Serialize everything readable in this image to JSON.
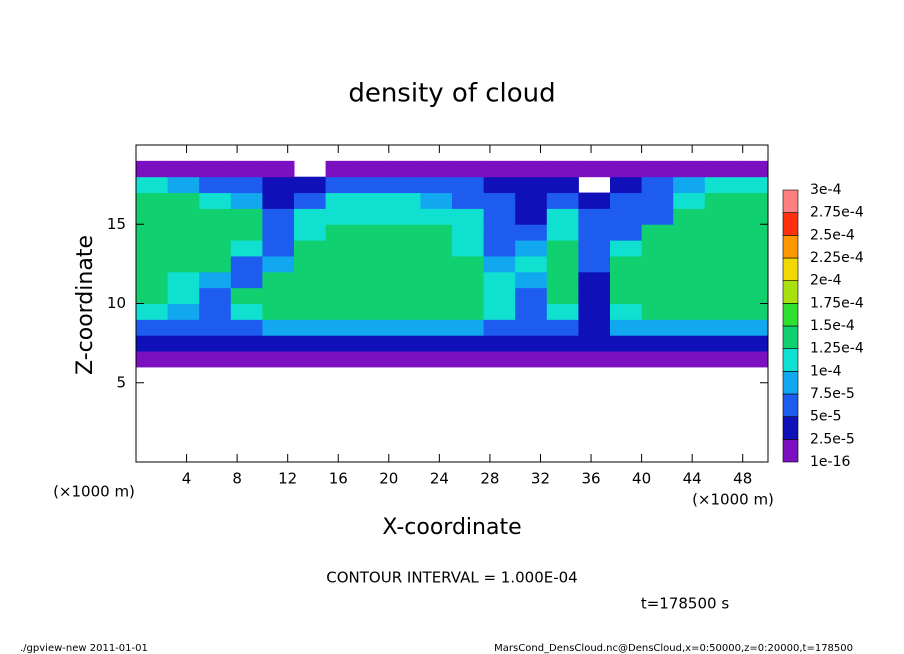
{
  "chart_data": {
    "type": "contour",
    "title": "density of cloud",
    "x_label": "X-coordinate",
    "y_label": "Z-coordinate",
    "x_unit_left": "(×1000 m)",
    "x_unit_right": "(×1000 m)",
    "contour_note": "CONTOUR INTERVAL = 1.000E-04",
    "time_note": "t=178500 s",
    "footer_left": "./gpview-new   2011-01-01",
    "footer_right": "MarsCond_DensCloud.nc@DensCloud,x=0:50000,z=0:20000,t=178500",
    "xlim": [
      0,
      50
    ],
    "ylim": [
      0,
      20
    ],
    "xticks": [
      4,
      8,
      12,
      16,
      20,
      24,
      28,
      32,
      36,
      40,
      44,
      48
    ],
    "yticks": [
      5,
      10,
      15
    ],
    "x_bins": [
      0,
      2.5,
      5,
      7.5,
      10,
      12.5,
      15,
      17.5,
      20,
      22.5,
      25,
      27.5,
      30,
      32.5,
      35,
      37.5,
      40,
      42.5,
      45,
      47.5,
      50
    ],
    "z_bins": [
      6,
      7,
      8,
      9,
      10,
      11,
      12,
      13,
      14,
      15,
      16,
      17,
      18,
      19
    ],
    "field": [
      [
        2e-05,
        1e-05,
        1e-05,
        2e-05,
        2e-05,
        2e-05,
        2e-05,
        2e-05,
        2e-05,
        2e-05,
        2e-05,
        2e-05,
        1e-05,
        1e-05,
        1e-05,
        2e-05,
        2e-05,
        2e-05,
        2e-05,
        2e-05
      ],
      [
        4e-05,
        3e-05,
        3e-05,
        4e-05,
        4e-05,
        4e-05,
        4e-05,
        4e-05,
        4e-05,
        4e-05,
        4e-05,
        4e-05,
        3e-05,
        3e-05,
        3e-05,
        4e-05,
        4e-05,
        4e-05,
        4e-05,
        4e-05
      ],
      [
        7e-05,
        6e-05,
        5e-05,
        7e-05,
        8e-05,
        8e-05,
        8e-05,
        8e-05,
        8e-05,
        8e-05,
        8e-05,
        7e-05,
        5e-05,
        6e-05,
        4e-05,
        8e-05,
        8e-05,
        8e-05,
        8e-05,
        8e-05
      ],
      [
        0.00011,
        8e-05,
        6e-05,
        0.00012,
        0.00013,
        0.00013,
        0.00013,
        0.00013,
        0.00013,
        0.00013,
        0.00013,
        0.00012,
        6e-05,
        0.00012,
        3e-05,
        0.00012,
        0.00013,
        0.00013,
        0.00013,
        0.00013
      ],
      [
        0.00013,
        0.00011,
        7e-05,
        0.00013,
        0.00014,
        0.00014,
        0.00014,
        0.00014,
        0.00014,
        0.00014,
        0.00014,
        0.00011,
        7e-05,
        0.00014,
        3e-05,
        0.00014,
        0.00014,
        0.00014,
        0.00014,
        0.00014
      ],
      [
        0.00013,
        0.00012,
        9e-05,
        6e-05,
        0.00013,
        0.00014,
        0.00014,
        0.00014,
        0.00014,
        0.00014,
        0.00014,
        0.0001,
        8e-05,
        0.00014,
        4e-05,
        0.00013,
        0.00014,
        0.00014,
        0.00014,
        0.00014
      ],
      [
        0.00014,
        0.00014,
        0.00013,
        7e-05,
        8e-05,
        0.00014,
        0.00014,
        0.00014,
        0.00014,
        0.00014,
        0.00013,
        8e-05,
        0.0001,
        0.00014,
        5e-05,
        0.00013,
        0.00014,
        0.00014,
        0.00014,
        0.00014
      ],
      [
        0.00014,
        0.00014,
        0.00014,
        0.00012,
        6e-05,
        0.00013,
        0.00014,
        0.00014,
        0.00014,
        0.00014,
        0.00012,
        7e-05,
        9e-05,
        0.00013,
        6e-05,
        0.00012,
        0.00014,
        0.00014,
        0.00014,
        0.00014
      ],
      [
        0.00014,
        0.00014,
        0.00014,
        0.00013,
        6e-05,
        0.00012,
        0.00013,
        0.00013,
        0.00013,
        0.00013,
        0.00011,
        7e-05,
        6e-05,
        0.00012,
        6e-05,
        7e-05,
        0.00013,
        0.00014,
        0.00014,
        0.00014
      ],
      [
        0.00014,
        0.00014,
        0.00014,
        0.00013,
        5e-05,
        0.0001,
        0.00012,
        0.00012,
        0.00012,
        0.00012,
        0.0001,
        6e-05,
        4e-05,
        0.0001,
        5e-05,
        5e-05,
        6e-05,
        0.00013,
        0.00014,
        0.00014
      ],
      [
        0.00013,
        0.00013,
        0.00012,
        8e-05,
        4e-05,
        7e-05,
        0.0001,
        0.0001,
        0.0001,
        9e-05,
        7e-05,
        5e-05,
        4e-05,
        5e-05,
        4e-05,
        6e-05,
        5e-05,
        0.00011,
        0.00013,
        0.00013
      ],
      [
        0.00011,
        9e-05,
        7e-05,
        5e-05,
        4e-05,
        4e-05,
        6e-05,
        6e-05,
        6e-05,
        5e-05,
        5e-05,
        4e-05,
        3e-05,
        3e-05,
        null,
        4e-05,
        5e-05,
        9e-05,
        0.00012,
        0.00012
      ],
      [
        1e-05,
        1e-05,
        1e-05,
        1e-05,
        1e-05,
        null,
        1e-05,
        1e-05,
        1e-05,
        1e-05,
        1e-05,
        1e-05,
        1e-05,
        1e-05,
        1e-05,
        1e-05,
        1e-05,
        1e-05,
        1e-05,
        1e-05
      ]
    ],
    "colorbar": {
      "levels": [
        {
          "value": 1e-16,
          "label": "1e-16"
        },
        {
          "value": 2.5e-05,
          "label": "2.5e-5"
        },
        {
          "value": 5e-05,
          "label": "5e-5"
        },
        {
          "value": 7.5e-05,
          "label": "7.5e-5"
        },
        {
          "value": 0.0001,
          "label": "1e-4"
        },
        {
          "value": 0.000125,
          "label": "1.25e-4"
        },
        {
          "value": 0.00015,
          "label": "1.5e-4"
        },
        {
          "value": 0.000175,
          "label": "1.75e-4"
        },
        {
          "value": 0.0002,
          "label": "2e-4"
        },
        {
          "value": 0.000225,
          "label": "2.25e-4"
        },
        {
          "value": 0.00025,
          "label": "2.5e-4"
        },
        {
          "value": 0.000275,
          "label": "2.75e-4"
        },
        {
          "value": 0.0003,
          "label": "3e-4"
        }
      ],
      "colors": [
        "#7a10c0",
        "#1010b8",
        "#1e5cf0",
        "#12a8f0",
        "#10e0d0",
        "#10d070",
        "#30e030",
        "#a8e010",
        "#f0d800",
        "#ff9800",
        "#ff3010",
        "#ff8080"
      ]
    }
  }
}
